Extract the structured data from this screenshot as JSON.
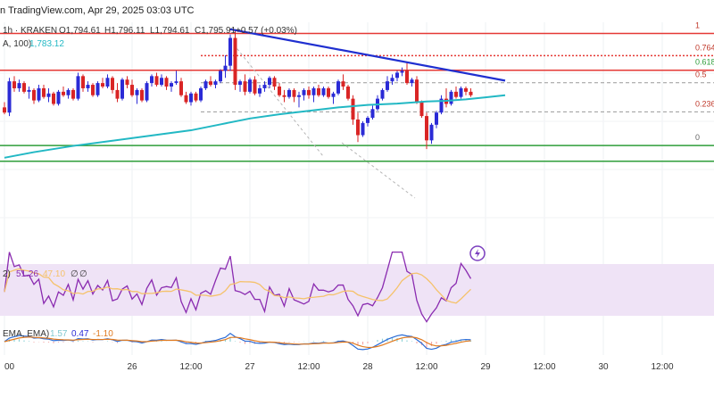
{
  "header": {
    "byline": "n TradingView.com, Apr 29, 2025 03:03 UTC",
    "symbol": "1h · KRAKEN",
    "o": "O1,794.61",
    "h": "H1,796.11",
    "l": "L1,794.61",
    "c": "C1,795.91",
    "change": "+0.57 (+0.03%)",
    "ma_label": "A, 100)",
    "ma_value": "1,783.12"
  },
  "indicators": {
    "rsi_label": "2)",
    "rsi_value": "51.26",
    "rsi_ma_value": "47.10",
    "rsi_extra1": "∅",
    "rsi_extra2": "∅",
    "macd_label": "EMA, EMA)",
    "macd_v1": "1.57",
    "macd_v2": "0.47",
    "macd_v3": "-1.10"
  },
  "colors": {
    "up": "#2b2bd6",
    "down": "#d92525",
    "ma": "#22b8c4",
    "trend": "#1f2fd0",
    "fib_red": "#e53935",
    "fib_green": "#2e9e3a",
    "rsi": "#8a2bb0",
    "rsi_ma": "#f5c26b",
    "rsi_band": "#efe3f6"
  },
  "chart_data": {
    "type": "candlestick",
    "title": "",
    "xlabel": "",
    "ylabel": "",
    "ylim": [
      1760,
      1825
    ],
    "x_ticks": [
      {
        "label": "00",
        "t": 0
      },
      {
        "label": "26",
        "t": 26
      },
      {
        "label": "12:00",
        "t": 38
      },
      {
        "label": "27",
        "t": 50
      },
      {
        "label": "12:00",
        "t": 62
      },
      {
        "label": "28",
        "t": 74
      },
      {
        "label": "12:00",
        "t": 86
      },
      {
        "label": "29",
        "t": 98
      },
      {
        "label": "12:00",
        "t": 110
      },
      {
        "label": "30",
        "t": 122
      },
      {
        "label": "12:00",
        "t": 134
      }
    ],
    "fib_levels": [
      {
        "label": "1",
        "price": 1821.8,
        "color": "fib_red",
        "style": "solid"
      },
      {
        "label": "0.764",
        "price": 1815.4,
        "color": "fib_red",
        "style": "dashed"
      },
      {
        "label": "0.618",
        "price": 1811.2,
        "color": "fib_red",
        "style": "solid"
      },
      {
        "label": "0.5",
        "price": 1807.6,
        "color": "fib_grey",
        "style": "dashed"
      },
      {
        "label": "0.236",
        "price": 1799.2,
        "color": "fib_grey",
        "style": "dashed"
      },
      {
        "label": "0",
        "price": 1789.5,
        "color": "fib_green",
        "style": "solid"
      },
      {
        "label": "",
        "price": 1785.0,
        "color": "fib_green",
        "style": "solid"
      }
    ],
    "trendline": [
      [
        46,
        1823.0
      ],
      [
        102,
        1808.2
      ]
    ],
    "ma_series": [
      [
        0,
        1786.0
      ],
      [
        6,
        1787.6
      ],
      [
        14,
        1789.4
      ],
      [
        22,
        1790.9
      ],
      [
        30,
        1792.4
      ],
      [
        38,
        1793.9
      ],
      [
        44,
        1795.6
      ],
      [
        50,
        1797.3
      ],
      [
        56,
        1798.5
      ],
      [
        62,
        1799.5
      ],
      [
        68,
        1800.5
      ],
      [
        74,
        1801.2
      ],
      [
        80,
        1801.6
      ],
      [
        86,
        1802.2
      ],
      [
        90,
        1802.4
      ],
      [
        94,
        1802.8
      ],
      [
        98,
        1803.4
      ],
      [
        102,
        1804.0
      ]
    ],
    "candles": [
      [
        0,
        1800.5,
        1802.0,
        1798.5,
        1799.0
      ],
      [
        1,
        1799.0,
        1809.0,
        1798.0,
        1808.0
      ],
      [
        2,
        1808.0,
        1809.5,
        1805.0,
        1806.0
      ],
      [
        3,
        1806.0,
        1808.5,
        1805.0,
        1807.5
      ],
      [
        4,
        1807.5,
        1808.0,
        1804.5,
        1805.0
      ],
      [
        5,
        1805.0,
        1806.5,
        1803.0,
        1805.5
      ],
      [
        6,
        1805.5,
        1806.0,
        1801.5,
        1802.5
      ],
      [
        7,
        1802.5,
        1807.0,
        1802.0,
        1806.0
      ],
      [
        8,
        1806.0,
        1807.0,
        1803.0,
        1803.5
      ],
      [
        9,
        1803.5,
        1806.0,
        1802.0,
        1804.5
      ],
      [
        10,
        1804.5,
        1805.0,
        1801.0,
        1801.5
      ],
      [
        11,
        1801.5,
        1805.5,
        1801.0,
        1805.0
      ],
      [
        12,
        1805.0,
        1806.5,
        1803.5,
        1804.0
      ],
      [
        13,
        1804.0,
        1806.0,
        1803.0,
        1805.5
      ],
      [
        14,
        1805.5,
        1806.0,
        1802.5,
        1803.0
      ],
      [
        15,
        1803.0,
        1810.5,
        1802.5,
        1809.5
      ],
      [
        16,
        1809.5,
        1810.0,
        1805.0,
        1806.0
      ],
      [
        17,
        1806.0,
        1808.0,
        1805.0,
        1807.0
      ],
      [
        18,
        1807.0,
        1807.5,
        1803.5,
        1804.0
      ],
      [
        19,
        1804.0,
        1808.0,
        1803.5,
        1807.5
      ],
      [
        20,
        1807.5,
        1809.0,
        1806.0,
        1806.5
      ],
      [
        21,
        1806.5,
        1810.0,
        1806.0,
        1809.0
      ],
      [
        22,
        1809.0,
        1809.5,
        1804.5,
        1805.5
      ],
      [
        23,
        1805.5,
        1807.5,
        1802.0,
        1803.0
      ],
      [
        24,
        1803.0,
        1809.0,
        1802.5,
        1808.5
      ],
      [
        25,
        1808.5,
        1809.5,
        1806.0,
        1807.0
      ],
      [
        26,
        1807.0,
        1808.5,
        1803.5,
        1804.0
      ],
      [
        27,
        1804.0,
        1806.0,
        1801.5,
        1805.5
      ],
      [
        28,
        1805.5,
        1806.0,
        1802.0,
        1802.5
      ],
      [
        29,
        1802.5,
        1808.0,
        1802.0,
        1807.5
      ],
      [
        30,
        1807.5,
        1810.0,
        1806.5,
        1809.5
      ],
      [
        31,
        1809.5,
        1810.5,
        1806.5,
        1807.0
      ],
      [
        32,
        1807.0,
        1810.0,
        1806.5,
        1809.0
      ],
      [
        33,
        1809.0,
        1809.5,
        1805.5,
        1806.5
      ],
      [
        34,
        1806.5,
        1808.0,
        1805.0,
        1807.5
      ],
      [
        35,
        1807.5,
        1811.0,
        1807.0,
        1808.0
      ],
      [
        36,
        1808.0,
        1809.0,
        1803.5,
        1804.0
      ],
      [
        37,
        1804.0,
        1805.0,
        1801.5,
        1802.0
      ],
      [
        38,
        1802.0,
        1805.0,
        1801.0,
        1804.5
      ],
      [
        39,
        1804.5,
        1805.0,
        1802.0,
        1802.5
      ],
      [
        40,
        1802.5,
        1806.5,
        1802.0,
        1806.0
      ],
      [
        41,
        1806.0,
        1808.5,
        1805.5,
        1808.0
      ],
      [
        42,
        1808.0,
        1809.5,
        1806.5,
        1807.0
      ],
      [
        43,
        1807.0,
        1808.5,
        1806.0,
        1808.0
      ],
      [
        44,
        1808.0,
        1811.5,
        1807.5,
        1811.0
      ],
      [
        45,
        1811.0,
        1815.5,
        1809.0,
        1812.5
      ],
      [
        46,
        1812.5,
        1821.5,
        1811.0,
        1820.5
      ],
      [
        47,
        1820.5,
        1823.0,
        1805.5,
        1807.0
      ],
      [
        48,
        1807.0,
        1808.5,
        1805.0,
        1808.0
      ],
      [
        49,
        1808.0,
        1810.0,
        1804.0,
        1805.0
      ],
      [
        50,
        1805.0,
        1809.0,
        1804.5,
        1808.5
      ],
      [
        51,
        1808.5,
        1809.5,
        1804.0,
        1804.5
      ],
      [
        52,
        1804.5,
        1807.0,
        1803.5,
        1806.0
      ],
      [
        53,
        1806.0,
        1808.0,
        1805.0,
        1807.0
      ],
      [
        54,
        1807.0,
        1809.5,
        1806.0,
        1809.0
      ],
      [
        55,
        1809.0,
        1809.5,
        1805.5,
        1806.5
      ],
      [
        56,
        1806.5,
        1807.5,
        1803.5,
        1804.0
      ],
      [
        57,
        1804.0,
        1805.5,
        1802.0,
        1803.5
      ],
      [
        58,
        1803.5,
        1806.0,
        1803.0,
        1805.5
      ],
      [
        59,
        1805.5,
        1806.0,
        1802.0,
        1803.5
      ],
      [
        60,
        1803.5,
        1805.0,
        1800.5,
        1804.0
      ],
      [
        61,
        1804.0,
        1806.0,
        1802.5,
        1805.5
      ],
      [
        62,
        1805.5,
        1806.5,
        1803.0,
        1804.0
      ],
      [
        63,
        1804.0,
        1806.5,
        1802.0,
        1806.0
      ],
      [
        64,
        1806.0,
        1807.0,
        1803.5,
        1804.0
      ],
      [
        65,
        1804.0,
        1806.5,
        1803.5,
        1806.0
      ],
      [
        66,
        1806.0,
        1806.5,
        1803.0,
        1803.5
      ],
      [
        67,
        1803.5,
        1805.0,
        1801.5,
        1804.5
      ],
      [
        68,
        1804.5,
        1808.5,
        1804.0,
        1808.0
      ],
      [
        69,
        1808.0,
        1810.0,
        1805.5,
        1806.5
      ],
      [
        70,
        1806.5,
        1807.0,
        1802.5,
        1803.0
      ],
      [
        71,
        1803.0,
        1804.0,
        1795.5,
        1797.0
      ],
      [
        72,
        1797.0,
        1799.0,
        1790.5,
        1792.5
      ],
      [
        73,
        1792.5,
        1796.5,
        1792.0,
        1796.0
      ],
      [
        74,
        1796.0,
        1798.0,
        1795.0,
        1797.5
      ],
      [
        75,
        1797.5,
        1801.0,
        1797.0,
        1800.0
      ],
      [
        76,
        1800.0,
        1804.0,
        1799.5,
        1803.0
      ],
      [
        77,
        1803.0,
        1806.0,
        1802.5,
        1805.5
      ],
      [
        78,
        1805.5,
        1809.5,
        1805.0,
        1808.0
      ],
      [
        79,
        1808.0,
        1810.0,
        1807.0,
        1809.0
      ],
      [
        80,
        1809.0,
        1811.0,
        1808.0,
        1810.5
      ],
      [
        81,
        1810.5,
        1812.0,
        1809.5,
        1811.0
      ],
      [
        82,
        1811.0,
        1813.5,
        1807.0,
        1807.5
      ],
      [
        83,
        1807.5,
        1809.0,
        1806.5,
        1808.5
      ],
      [
        84,
        1808.5,
        1809.5,
        1801.5,
        1802.0
      ],
      [
        85,
        1802.0,
        1802.5,
        1797.5,
        1798.0
      ],
      [
        86,
        1798.0,
        1799.0,
        1788.5,
        1791.0
      ],
      [
        87,
        1791.0,
        1796.0,
        1790.0,
        1795.5
      ],
      [
        88,
        1795.5,
        1799.5,
        1794.5,
        1799.0
      ],
      [
        89,
        1799.0,
        1804.0,
        1798.5,
        1803.0
      ],
      [
        90,
        1803.0,
        1806.0,
        1800.5,
        1801.5
      ],
      [
        91,
        1801.5,
        1805.5,
        1801.0,
        1805.0
      ],
      [
        92,
        1805.0,
        1806.5,
        1803.0,
        1803.5
      ],
      [
        93,
        1803.5,
        1806.5,
        1803.0,
        1806.0
      ],
      [
        94,
        1806.0,
        1806.5,
        1804.0,
        1805.0
      ],
      [
        95,
        1805.0,
        1806.0,
        1803.5,
        1804.0
      ]
    ]
  }
}
